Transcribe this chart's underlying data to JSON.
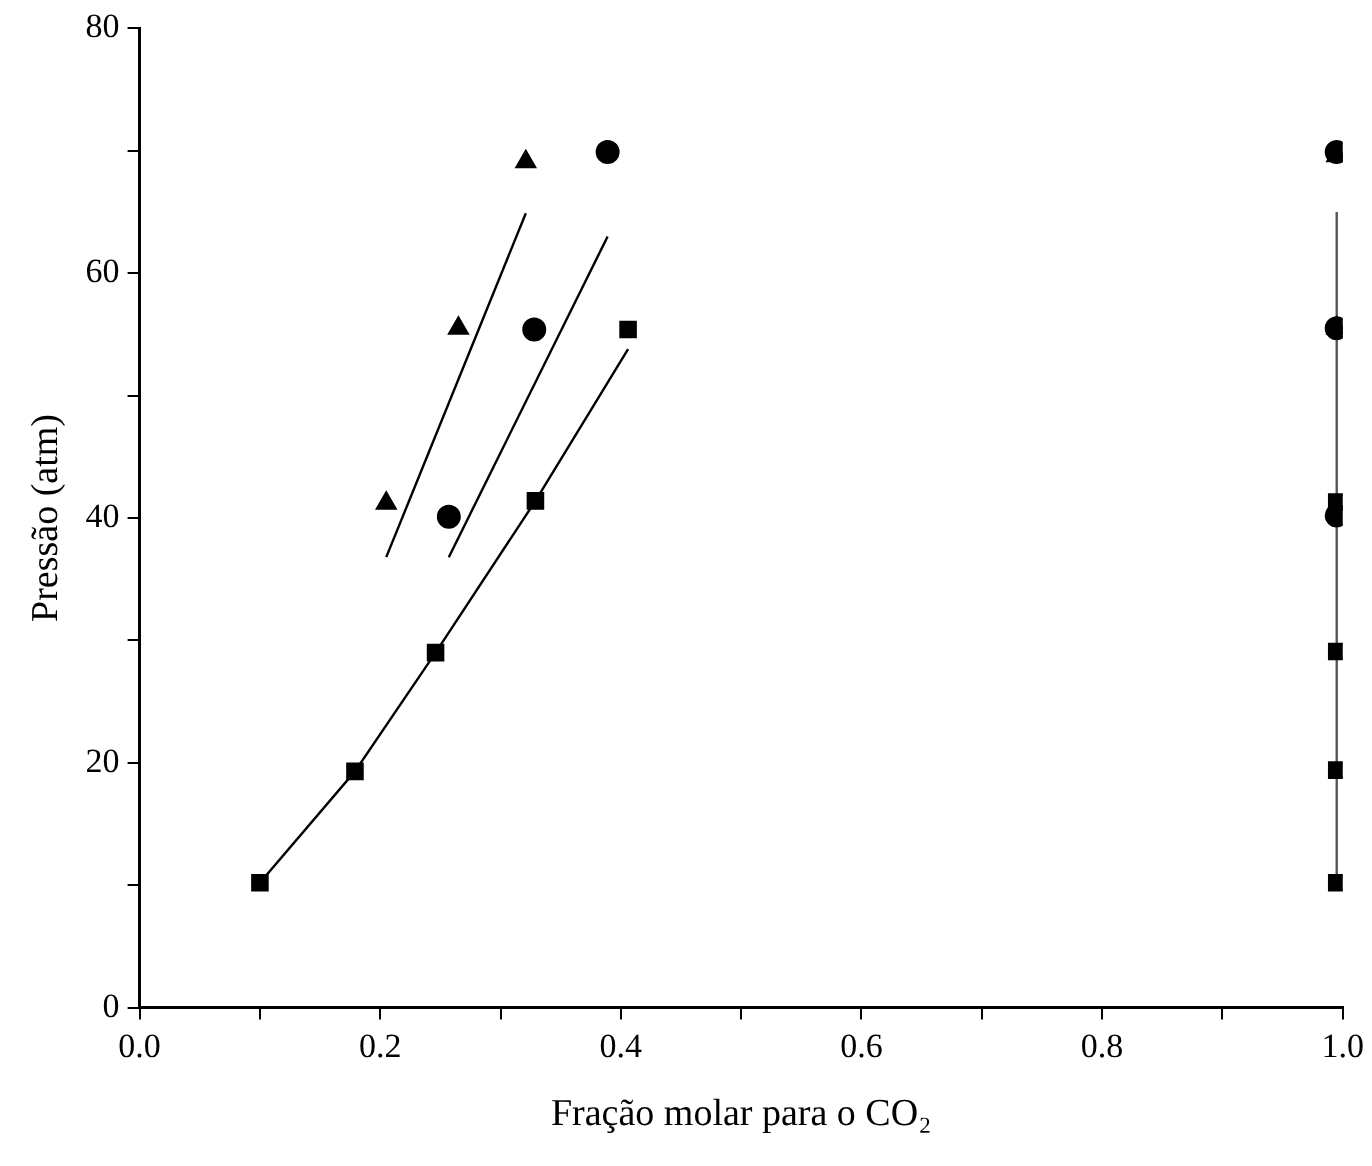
{
  "chart_data": {
    "type": "scatter",
    "xlabel": "Fração molar para o CO₂",
    "ylabel": "Pressão (atm)",
    "xlim": [
      0,
      1
    ],
    "ylim": [
      0,
      80
    ],
    "xticks": [
      {
        "value": 0,
        "label": "0.0"
      },
      {
        "value": 0.1,
        "label": null
      },
      {
        "value": 0.2,
        "label": "0.2"
      },
      {
        "value": 0.3,
        "label": null
      },
      {
        "value": 0.4,
        "label": "0.4"
      },
      {
        "value": 0.5,
        "label": null
      },
      {
        "value": 0.6,
        "label": "0.6"
      },
      {
        "value": 0.7,
        "label": null
      },
      {
        "value": 0.8,
        "label": "0.8"
      },
      {
        "value": 0.9,
        "label": null
      },
      {
        "value": 1,
        "label": "1.0"
      }
    ],
    "yticks": [
      0,
      {
        "value": 10,
        "label": null
      },
      20,
      {
        "value": 30,
        "label": null
      },
      40,
      {
        "value": 50,
        "label": null
      },
      60,
      {
        "value": 70,
        "label": null
      },
      80
    ],
    "grid": false,
    "legend": false,
    "series": [
      {
        "marker": "square",
        "color": "#000000",
        "x": [
          0.1,
          0.179,
          0.246,
          0.329,
          0.406,
          0.995,
          0.995,
          0.995,
          0.995
        ],
        "values": [
          10.2,
          19.3,
          29.0,
          41.4,
          55.4,
          10.2,
          19.4,
          29.1,
          41.3
        ]
      },
      {
        "marker": "circle",
        "color": "#000000",
        "x": [
          0.257,
          0.328,
          0.389,
          0.995,
          0.995,
          0.995
        ],
        "values": [
          40.1,
          55.4,
          69.9,
          40.2,
          55.5,
          69.9
        ]
      },
      {
        "marker": "triangle",
        "color": "#000000",
        "x": [
          0.205,
          0.265,
          0.321,
          0.995,
          0.995
        ],
        "values": [
          41.2,
          55.5,
          69.1,
          55.5,
          69.6
        ]
      },
      {
        "type": "line",
        "line_style": "solid",
        "color": "#000000",
        "x": [
          0.1,
          0.179,
          0.246,
          0.329,
          0.406
        ],
        "values": [
          10.2,
          19.3,
          29.0,
          41.4,
          53.8
        ]
      },
      {
        "type": "line",
        "line_style": "solid",
        "color": "#000000",
        "x": [
          0.257,
          0.389
        ],
        "values": [
          36.8,
          63.0
        ]
      },
      {
        "type": "line",
        "line_style": "solid",
        "color": "#000000",
        "x": [
          0.205,
          0.321
        ],
        "values": [
          36.8,
          64.9
        ]
      },
      {
        "type": "line",
        "line_style": "solid",
        "color": "#555555",
        "x": [
          0.995,
          0.995
        ],
        "values": [
          10.2,
          65.0
        ]
      }
    ]
  }
}
